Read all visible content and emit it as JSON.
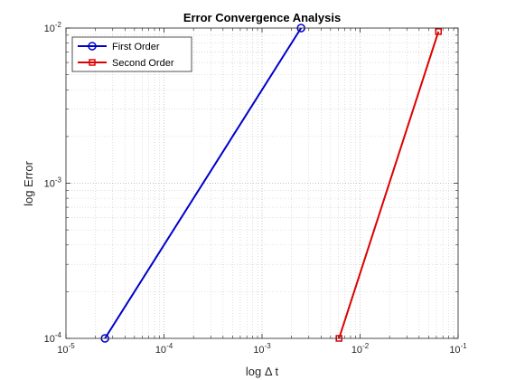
{
  "chart_data": {
    "type": "line",
    "title": "Error Convergence Analysis",
    "xlabel": "log Δ t",
    "ylabel": "log Error",
    "xscale": "log",
    "yscale": "log",
    "xlim": [
      1e-05,
      0.1
    ],
    "ylim": [
      0.0001,
      0.01
    ],
    "xticks": [
      {
        "value": 1e-05,
        "base": "10",
        "exp": "-5"
      },
      {
        "value": 0.0001,
        "base": "10",
        "exp": "-4"
      },
      {
        "value": 0.001,
        "base": "10",
        "exp": "-3"
      },
      {
        "value": 0.01,
        "base": "10",
        "exp": "-2"
      },
      {
        "value": 0.1,
        "base": "10",
        "exp": "-1"
      }
    ],
    "yticks": [
      {
        "value": 0.0001,
        "base": "10",
        "exp": "-4"
      },
      {
        "value": 0.001,
        "base": "10",
        "exp": "-3"
      },
      {
        "value": 0.01,
        "base": "10",
        "exp": "-2"
      }
    ],
    "grid": true,
    "minor_grid": true,
    "legend_position": "top-left",
    "series": [
      {
        "name": "First Order",
        "color": "#0000cc",
        "marker": "circle",
        "x": [
          2.5e-05,
          0.0025
        ],
        "y": [
          0.0001,
          0.01
        ]
      },
      {
        "name": "Second Order",
        "color": "#dd0000",
        "marker": "square",
        "x": [
          0.0061,
          0.063
        ],
        "y": [
          0.0001,
          0.0095
        ]
      }
    ]
  }
}
